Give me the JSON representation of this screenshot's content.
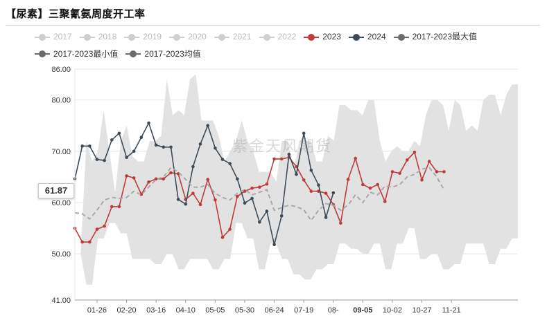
{
  "title": "【尿素】三聚氰氨周度开工率",
  "watermark": "紫金天风期货",
  "colors": {
    "y2023": "#c0393b",
    "y2024": "#3d4b58",
    "band": "#e2e2e2",
    "avg": "#a9a9a9",
    "off": "#cfcfcf",
    "agg": "#6b6b6b"
  },
  "legend": [
    {
      "label": "2017",
      "state": "off",
      "color": "#cfcfcf"
    },
    {
      "label": "2018",
      "state": "off",
      "color": "#cfcfcf"
    },
    {
      "label": "2019",
      "state": "off",
      "color": "#cfcfcf"
    },
    {
      "label": "2020",
      "state": "off",
      "color": "#cfcfcf"
    },
    {
      "label": "2021",
      "state": "off",
      "color": "#cfcfcf"
    },
    {
      "label": "2022",
      "state": "off",
      "color": "#cfcfcf"
    },
    {
      "label": "2023",
      "state": "on",
      "color": "#c0393b"
    },
    {
      "label": "2024",
      "state": "on",
      "color": "#3d4b58"
    },
    {
      "label": "2017-2023最大值",
      "state": "on",
      "color": "#6b6b6b"
    },
    {
      "label": "2017-2023最小值",
      "state": "on",
      "color": "#6b6b6b"
    },
    {
      "label": "2017-2023均值",
      "state": "on",
      "color": "#6b6b6b"
    }
  ],
  "value_flag": "61.87",
  "chart_data": {
    "type": "line",
    "title": "【尿素】三聚氰氨周度开工率",
    "xlabel": "",
    "ylabel": "",
    "ylim": [
      41,
      86
    ],
    "y_ticks": [
      "41.00",
      "50.00",
      "60.00",
      "70.00",
      "80.00",
      "86.00"
    ],
    "x_ticks": [
      "01-26",
      "02-20",
      "03-16",
      "04-10",
      "05-05",
      "05-30",
      "06-24",
      "07-19",
      "08-",
      "09-05",
      "10-02",
      "10-27",
      "11-21"
    ],
    "x_tick_weeks": [
      3,
      7,
      11,
      15,
      19,
      23,
      27,
      31,
      35,
      39,
      43,
      47,
      51
    ],
    "highlighted_tick": "09-05",
    "weeks": 60,
    "band_max": [
      50,
      50,
      72,
      68,
      70,
      78,
      70,
      62,
      72,
      75,
      69,
      68,
      68,
      72,
      72,
      73,
      84,
      77,
      78,
      77,
      84,
      85,
      76,
      76,
      76,
      73,
      68,
      70,
      72,
      76,
      72,
      70,
      66,
      66,
      66,
      64,
      72,
      72,
      66,
      72,
      72,
      72,
      68,
      68,
      73,
      72,
      79,
      79,
      78,
      78,
      77,
      80,
      80,
      72,
      68,
      70,
      71,
      70,
      70,
      72,
      71,
      77,
      80,
      80,
      79,
      74,
      80,
      79,
      74,
      75,
      74,
      80,
      81,
      81,
      77,
      81,
      83,
      83
    ],
    "band_min": [
      50,
      50,
      44,
      44,
      53,
      53,
      56,
      56,
      54,
      54,
      49,
      49,
      49,
      49,
      48,
      48,
      50,
      50,
      47,
      47,
      49,
      49,
      49,
      49,
      47,
      47,
      49,
      49,
      56,
      56,
      53,
      53,
      47,
      47,
      52,
      52,
      49,
      49,
      46,
      46,
      45,
      45,
      47,
      47,
      48,
      48,
      52,
      52,
      51,
      51,
      50,
      50,
      52,
      52,
      47,
      47,
      52,
      52,
      55,
      55,
      49,
      49,
      50,
      50,
      47,
      47,
      48,
      48,
      52,
      52,
      52,
      52,
      48,
      48,
      51,
      51,
      53,
      53
    ],
    "series": [
      {
        "name": "2023",
        "color": "#c0393b",
        "values": [
          55,
          52.3,
          52.3,
          54.8,
          55.4,
          59.2,
          59.2,
          65.2,
          64.8,
          61.6,
          64,
          64.6,
          64.6,
          65.8,
          65.6,
          60.6,
          61.8,
          59.6,
          64.5,
          60.5,
          53.2,
          54.8,
          61.2,
          62.2,
          62.8,
          63.0,
          63.6,
          68.5,
          68.5,
          68.8,
          67,
          64.4,
          62.2,
          62.2,
          61.8,
          59.6,
          56.0,
          64.5,
          68.6,
          63.5,
          62.8,
          63.5,
          60.2,
          66.0,
          65.7,
          68.3,
          69.8,
          64.4,
          68.0,
          66.0,
          66.0
        ]
      },
      {
        "name": "2024",
        "color": "#3d4b58",
        "values": [
          64.6,
          71,
          71,
          68.4,
          68.2,
          72.2,
          73.5,
          68.8,
          70,
          72.7,
          75.5,
          71.2,
          70.8,
          70.8,
          60.6,
          59.7,
          67,
          71.4,
          75.0,
          70.6,
          68.4,
          67.6,
          64.6,
          59.9,
          60.8,
          56.2,
          58.3,
          51.8,
          57.4,
          69.4,
          65.5,
          73.5,
          66.3,
          63.4,
          57.1,
          61.9
        ]
      },
      {
        "name": "2017-2023均值",
        "color": "#a9a9a9",
        "dashed": true,
        "values": [
          58,
          57.8,
          56.8,
          58.5,
          60.5,
          61,
          60.8,
          61,
          62.2,
          61.5,
          63,
          64.5,
          65,
          66.8,
          66,
          64.5,
          63,
          63,
          63.5,
          61.8,
          61,
          60.5,
          61.8,
          62.5,
          61.5,
          62,
          62.5,
          58.5,
          59,
          59.5,
          59.2,
          58.6,
          56.5,
          58.5,
          59.8,
          59.5,
          58.5,
          59.5,
          61.5,
          60,
          62,
          61.5,
          63.2,
          63,
          63.5,
          65,
          65.5,
          66.5,
          66.8,
          65,
          62.5
        ]
      }
    ]
  }
}
